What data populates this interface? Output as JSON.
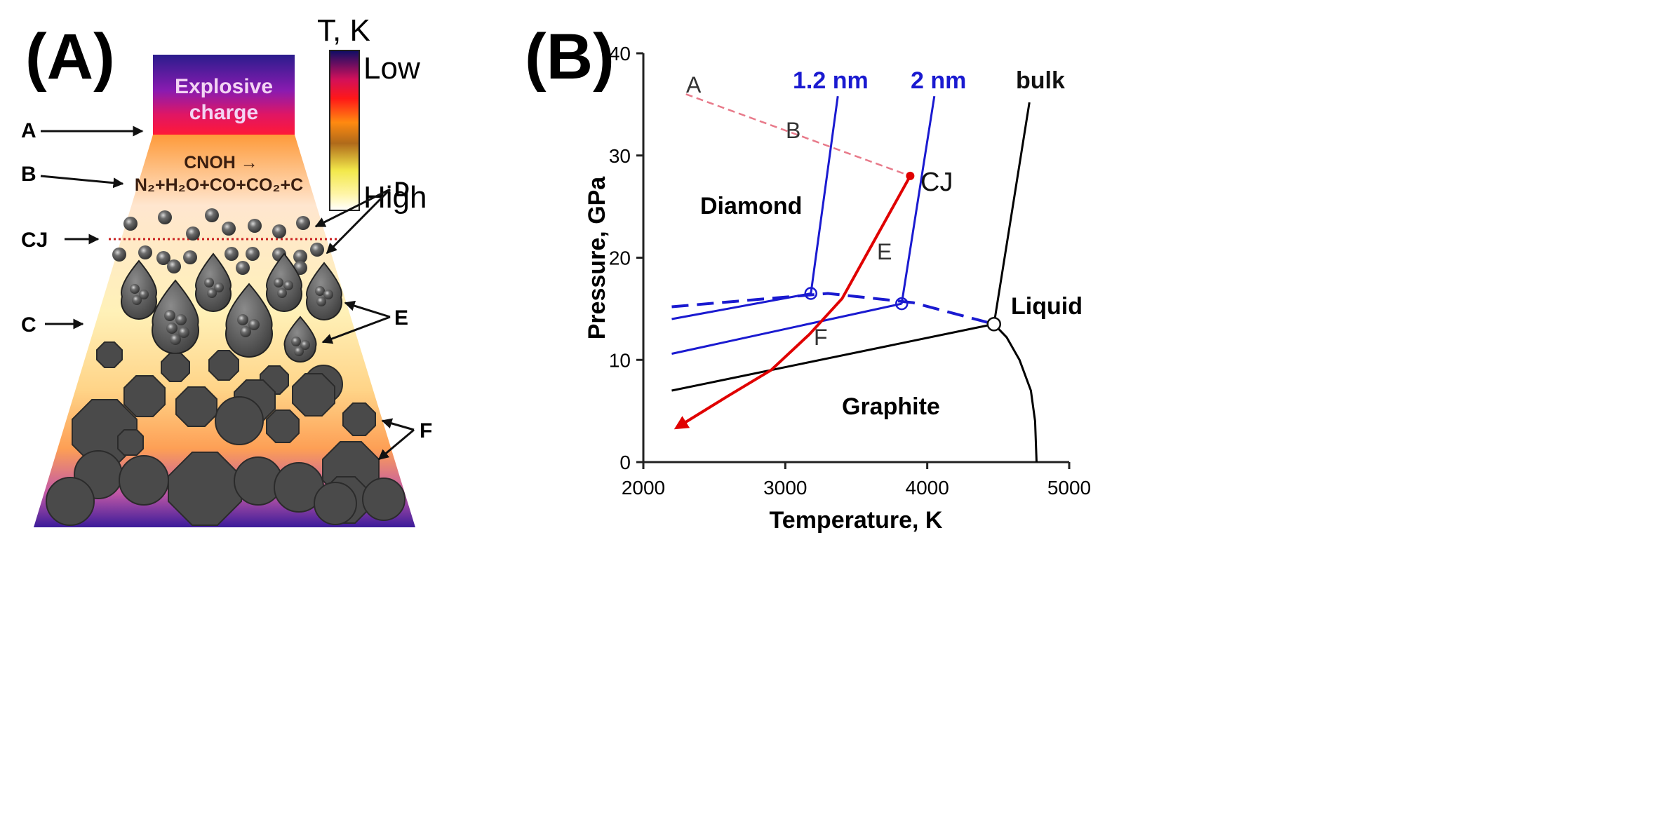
{
  "panel_a": {
    "label": "(A)",
    "charge_line1": "Explosive",
    "charge_line2": "charge",
    "colorbar": {
      "title": "T, K",
      "low": "Low",
      "high": "High"
    },
    "reaction_line1": "CNOH →",
    "reaction_line2": "N₂+H₂O+CO+CO₂+C",
    "markers": [
      "A",
      "B",
      "CJ",
      "C",
      "D",
      "E",
      "F"
    ]
  },
  "panel_b": {
    "label": "(B)",
    "chart_data": {
      "type": "line",
      "xlabel": "Temperature, K",
      "ylabel": "Pressure, GPa",
      "xlim": [
        2000,
        5000
      ],
      "ylim": [
        0,
        40
      ],
      "xticks": [
        2000,
        3000,
        4000,
        5000
      ],
      "yticks": [
        0,
        10,
        20,
        30,
        40
      ],
      "region_labels": [
        "Diamond",
        "Graphite",
        "Liquid"
      ],
      "curve_labels": [
        "1.2 nm",
        "2 nm",
        "bulk"
      ],
      "path_labels": [
        "A",
        "B",
        "CJ",
        "E",
        "F"
      ],
      "series": [
        {
          "name": "bulk diamond-graphite",
          "color": "#000000",
          "points": [
            [
              2200,
              7
            ],
            [
              4470,
              13.5
            ]
          ]
        },
        {
          "name": "bulk diamond-liquid",
          "color": "#000000",
          "points": [
            [
              4470,
              13.5
            ],
            [
              4720,
              35.2
            ]
          ]
        },
        {
          "name": "bulk graphite-liquid",
          "color": "#000000",
          "points": [
            [
              4470,
              13.5
            ],
            [
              4560,
              12.2
            ],
            [
              4650,
              10
            ],
            [
              4730,
              7
            ],
            [
              4760,
              4
            ],
            [
              4770,
              0
            ]
          ]
        },
        {
          "name": "2 nm diamond-graphite",
          "color": "#1a1ad0",
          "points": [
            [
              2200,
              10.6
            ],
            [
              3820,
              15.5
            ]
          ]
        },
        {
          "name": "2 nm diamond-liquid",
          "color": "#1a1ad0",
          "points": [
            [
              3820,
              15.5
            ],
            [
              4050,
              35.8
            ]
          ]
        },
        {
          "name": "1.2 nm diamond-graphite",
          "color": "#1a1ad0",
          "points": [
            [
              2200,
              14
            ],
            [
              3180,
              16.5
            ]
          ]
        },
        {
          "name": "1.2 nm diamond-liquid",
          "color": "#1a1ad0",
          "points": [
            [
              3180,
              16.5
            ],
            [
              3370,
              35.8
            ]
          ]
        },
        {
          "name": "nano liquid boundary (dashed)",
          "color": "#1a1ad0",
          "points": [
            [
              2200,
              15.2
            ],
            [
              3300,
              16.5
            ],
            [
              3900,
              15.6
            ],
            [
              4470,
              13.5
            ]
          ]
        },
        {
          "name": "detonation path A-CJ (dashed)",
          "color": "#e87a8a",
          "points": [
            [
              2300,
              36
            ],
            [
              3880,
              28
            ]
          ]
        },
        {
          "name": "expansion path CJ-E-F",
          "color": "#e00000",
          "points": [
            [
              3880,
              28
            ],
            [
              3620,
              21.5
            ],
            [
              3400,
              16
            ],
            [
              3170,
              12.5
            ],
            [
              2900,
              9
            ],
            [
              2600,
              6.5
            ],
            [
              2250,
              3.5
            ]
          ]
        }
      ],
      "triple_points": [
        [
          3180,
          16.5
        ],
        [
          3820,
          15.5
        ],
        [
          4470,
          13.5
        ]
      ]
    }
  }
}
